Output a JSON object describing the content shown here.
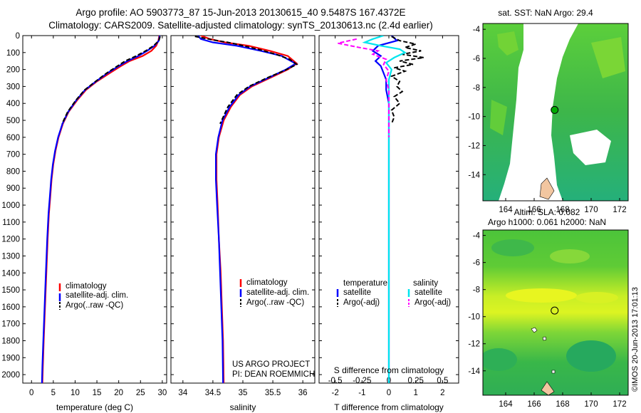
{
  "figure": {
    "title_line1": "Argo profile: AO 5903773_87 15-Jun-2013 20130615_40 9.5487S 167.4372E",
    "title_line2": "Climatology: CARS2009. Satellite-adjusted climatology: synTS_20130613.nc (2.4d earlier)",
    "colors": {
      "climatology": "#ff0000",
      "satellite": "#0000ff",
      "argo": "#000000",
      "sal_satellite": "#00e5ee",
      "sal_argo": "#ff00ff"
    }
  },
  "depth_axis": {
    "ticks": [
      "0",
      "100",
      "200",
      "300",
      "400",
      "500",
      "600",
      "700",
      "800",
      "900",
      "1000",
      "1100",
      "1200",
      "1300",
      "1400",
      "1500",
      "1600",
      "1700",
      "1800",
      "1900",
      "2000"
    ],
    "range": [
      0,
      2050
    ]
  },
  "chart_data": [
    {
      "type": "line",
      "name": "temperature-profile",
      "xlabel": "temperature (deg C)",
      "xlim": [
        -2,
        31
      ],
      "xticks": [
        "0",
        "5",
        "10",
        "15",
        "20",
        "25",
        "30"
      ],
      "xtick_values": [
        0,
        5,
        10,
        15,
        20,
        25,
        30
      ],
      "legend": [
        "climatology",
        "satellite-adj. clim.",
        "Argo(..raw -QC)"
      ],
      "series": [
        {
          "name": "climatology",
          "color": "#ff0000",
          "points": [
            [
              29.3,
              0
            ],
            [
              29.1,
              30
            ],
            [
              28.6,
              60
            ],
            [
              27.5,
              90
            ],
            [
              25.5,
              120
            ],
            [
              22.5,
              150
            ],
            [
              20.5,
              180
            ],
            [
              18,
              220
            ],
            [
              15,
              270
            ],
            [
              12.5,
              320
            ],
            [
              10.5,
              380
            ],
            [
              8.5,
              450
            ],
            [
              7.2,
              520
            ],
            [
              6.2,
              600
            ],
            [
              5.5,
              680
            ],
            [
              5,
              760
            ],
            [
              4.6,
              850
            ],
            [
              4.3,
              950
            ],
            [
              4,
              1050
            ],
            [
              3.7,
              1200
            ],
            [
              3.4,
              1400
            ],
            [
              3.1,
              1600
            ],
            [
              2.8,
              1800
            ],
            [
              2.6,
              1950
            ],
            [
              2.5,
              2050
            ]
          ]
        },
        {
          "name": "satellite-adj. clim.",
          "color": "#0000ff",
          "points": [
            [
              29.4,
              0
            ],
            [
              29.2,
              30
            ],
            [
              28.2,
              60
            ],
            [
              26.5,
              90
            ],
            [
              24.5,
              120
            ],
            [
              22,
              150
            ],
            [
              20,
              180
            ],
            [
              17.5,
              220
            ],
            [
              14.8,
              270
            ],
            [
              12.3,
              320
            ],
            [
              10.3,
              380
            ],
            [
              8.4,
              450
            ],
            [
              7.1,
              520
            ],
            [
              6.1,
              600
            ],
            [
              5.4,
              680
            ],
            [
              4.9,
              760
            ],
            [
              4.5,
              850
            ],
            [
              4.2,
              950
            ],
            [
              3.9,
              1050
            ],
            [
              3.6,
              1200
            ],
            [
              3.3,
              1400
            ],
            [
              3,
              1600
            ],
            [
              2.7,
              1800
            ],
            [
              2.5,
              1950
            ],
            [
              2.4,
              2050
            ]
          ]
        },
        {
          "name": "Argo(..raw -QC)",
          "color": "#000000",
          "dashed": true,
          "points": [
            [
              29.5,
              5
            ],
            [
              29.2,
              30
            ],
            [
              28,
              60
            ],
            [
              26.2,
              90
            ],
            [
              24,
              120
            ],
            [
              21.5,
              150
            ],
            [
              19.7,
              180
            ],
            [
              17.3,
              220
            ],
            [
              14.7,
              270
            ],
            [
              12.2,
              320
            ],
            [
              10.2,
              380
            ],
            [
              8.3,
              450
            ],
            [
              7,
              520
            ]
          ]
        }
      ]
    },
    {
      "type": "line",
      "name": "salinity-profile",
      "xlabel": "salinity",
      "xlim": [
        33.8,
        36.2
      ],
      "xticks": [
        "34",
        "34.5",
        "35",
        "35.5",
        "36"
      ],
      "xtick_values": [
        34,
        34.5,
        35,
        35.5,
        36
      ],
      "legend": [
        "climatology",
        "satellite-adj. clim.",
        "Argo(..raw -QC)"
      ],
      "series": [
        {
          "name": "climatology",
          "color": "#ff0000",
          "points": [
            [
              34.3,
              0
            ],
            [
              34.45,
              20
            ],
            [
              34.7,
              40
            ],
            [
              35.1,
              60
            ],
            [
              35.45,
              90
            ],
            [
              35.75,
              120
            ],
            [
              35.9,
              165
            ],
            [
              35.75,
              200
            ],
            [
              35.45,
              250
            ],
            [
              35.15,
              300
            ],
            [
              34.95,
              350
            ],
            [
              34.8,
              420
            ],
            [
              34.68,
              500
            ],
            [
              34.6,
              600
            ],
            [
              34.56,
              700
            ],
            [
              34.56,
              850
            ],
            [
              34.58,
              1000
            ],
            [
              34.6,
              1200
            ],
            [
              34.63,
              1400
            ],
            [
              34.65,
              1600
            ],
            [
              34.67,
              1800
            ],
            [
              34.68,
              2050
            ]
          ]
        },
        {
          "name": "satellite-adj. clim.",
          "color": "#0000ff",
          "points": [
            [
              34.25,
              0
            ],
            [
              34.3,
              20
            ],
            [
              34.5,
              40
            ],
            [
              34.9,
              60
            ],
            [
              35.3,
              90
            ],
            [
              35.65,
              120
            ],
            [
              35.88,
              165
            ],
            [
              35.72,
              200
            ],
            [
              35.42,
              250
            ],
            [
              35.12,
              300
            ],
            [
              34.93,
              350
            ],
            [
              34.78,
              420
            ],
            [
              34.66,
              500
            ],
            [
              34.59,
              600
            ],
            [
              34.55,
              700
            ],
            [
              34.55,
              850
            ],
            [
              34.57,
              1000
            ],
            [
              34.6,
              1200
            ],
            [
              34.62,
              1400
            ],
            [
              34.64,
              1600
            ],
            [
              34.66,
              1800
            ],
            [
              34.67,
              2050
            ]
          ]
        },
        {
          "name": "Argo(..raw -QC)",
          "color": "#000000",
          "dashed": true,
          "points": [
            [
              34.2,
              5
            ],
            [
              34.5,
              25
            ],
            [
              34.75,
              40
            ],
            [
              34.95,
              55
            ],
            [
              35.3,
              85
            ],
            [
              35.55,
              110
            ],
            [
              35.78,
              140
            ],
            [
              35.9,
              170
            ],
            [
              35.7,
              205
            ],
            [
              35.4,
              250
            ],
            [
              35.1,
              300
            ],
            [
              34.9,
              350
            ],
            [
              34.75,
              420
            ],
            [
              34.62,
              520
            ]
          ]
        }
      ]
    },
    {
      "type": "line",
      "name": "difference-profile",
      "xlabel": "T difference from climatology",
      "xlabel_top": "S difference from climatology",
      "xlim": [
        -2.6,
        2.6
      ],
      "xticks": [
        "-2",
        "-1",
        "0",
        "1",
        "2"
      ],
      "xtick_values": [
        -2,
        -1,
        0,
        1,
        2
      ],
      "top_ticks": [
        "-0.5",
        "-0.25",
        "0",
        "0.25",
        "0.5"
      ],
      "top_tick_values": [
        -2,
        -1,
        0,
        1,
        2
      ],
      "legend_temperature_title": "temperature",
      "legend_salinity_title": "salinity",
      "legend": [
        "satellite",
        "Argo(-adj)",
        "satellite",
        "Argo(-adj)"
      ],
      "series": [
        {
          "name": "T satellite",
          "color": "#0000ff",
          "points": [
            [
              0.1,
              0
            ],
            [
              0.3,
              30
            ],
            [
              -0.4,
              60
            ],
            [
              -0.6,
              90
            ],
            [
              -0.3,
              120
            ],
            [
              -0.5,
              150
            ],
            [
              -0.3,
              180
            ],
            [
              -0.2,
              220
            ],
            [
              -0.1,
              260
            ],
            [
              -0.1,
              320
            ],
            [
              0,
              400
            ],
            [
              0,
              500
            ],
            [
              0,
              700
            ],
            [
              0,
              1000
            ],
            [
              0,
              1500
            ],
            [
              0,
              2050
            ]
          ]
        },
        {
          "name": "T Argo(-adj)",
          "color": "#000000",
          "dashed": true,
          "points": [
            [
              0.1,
              5
            ],
            [
              0.4,
              30
            ],
            [
              1,
              50
            ],
            [
              0.6,
              70
            ],
            [
              1.2,
              90
            ],
            [
              0.5,
              110
            ],
            [
              1.3,
              130
            ],
            [
              0.4,
              150
            ],
            [
              0.9,
              170
            ],
            [
              0.2,
              190
            ],
            [
              0.6,
              210
            ],
            [
              0.1,
              240
            ],
            [
              0.4,
              270
            ],
            [
              0.3,
              300
            ],
            [
              0.5,
              330
            ],
            [
              0.2,
              360
            ],
            [
              0.4,
              400
            ],
            [
              0.1,
              440
            ],
            [
              0.2,
              480
            ],
            [
              0.1,
              520
            ]
          ]
        },
        {
          "name": "S satellite",
          "color": "#00e5ee",
          "points": [
            [
              -0.2,
              0
            ],
            [
              -0.6,
              20
            ],
            [
              -0.9,
              40
            ],
            [
              -0.3,
              60
            ],
            [
              0.4,
              80
            ],
            [
              0.6,
              100
            ],
            [
              0.2,
              130
            ],
            [
              -0.1,
              160
            ],
            [
              0.1,
              200
            ],
            [
              0,
              260
            ],
            [
              0,
              350
            ],
            [
              0,
              500
            ],
            [
              0,
              800
            ],
            [
              0,
              1200
            ],
            [
              0,
              2050
            ]
          ]
        },
        {
          "name": "S Argo(-adj)",
          "color": "#ff00ff",
          "dashed": true,
          "points": [
            [
              -1.2,
              20
            ],
            [
              -1.9,
              45
            ],
            [
              -1.1,
              70
            ],
            [
              -0.4,
              90
            ],
            [
              -0.6,
              110
            ],
            [
              -0.1,
              140
            ],
            [
              -0.2,
              170
            ],
            [
              0,
              210
            ],
            [
              -0.1,
              260
            ],
            [
              0,
              320
            ],
            [
              0,
              400
            ],
            [
              0,
              500
            ],
            [
              0,
              600
            ]
          ]
        }
      ]
    },
    {
      "type": "heatmap",
      "name": "sst-map",
      "title": "sat. SST: NaN Argo: 29.4",
      "xlim": [
        162.4,
        172.6
      ],
      "ylim": [
        -15.8,
        -3.6
      ],
      "xticks": [
        "164",
        "166",
        "168",
        "170",
        "172"
      ],
      "xtick_values": [
        164,
        166,
        168,
        170,
        172
      ],
      "yticks": [
        "-4",
        "-6",
        "-8",
        "-10",
        "-12",
        "-14"
      ],
      "ytick_values": [
        -4,
        -6,
        -8,
        -10,
        -12,
        -14
      ],
      "argo_position": [
        167.4372,
        -9.5487
      ]
    },
    {
      "type": "heatmap",
      "name": "sla-map",
      "title_line1": "Altim. SLA: 0.082",
      "title_line2": "Argo h1000: 0.061 h2000: NaN",
      "xlim": [
        162.4,
        172.6
      ],
      "ylim": [
        -15.8,
        -3.6
      ],
      "xticks": [
        "164",
        "166",
        "168",
        "170",
        "172"
      ],
      "xtick_values": [
        164,
        166,
        168,
        170,
        172
      ],
      "yticks": [
        "-4",
        "-6",
        "-8",
        "-10",
        "-12",
        "-14"
      ],
      "ytick_values": [
        -4,
        -6,
        -8,
        -10,
        -12,
        -14
      ],
      "argo_position": [
        167.4372,
        -9.5487
      ]
    }
  ],
  "annotations": {
    "project_line1": "US ARGO PROJECT",
    "project_line2": "PI: DEAN ROEMMICH",
    "imos_stamp": "©IMOS 20-Jun-2013 17:01:13"
  }
}
